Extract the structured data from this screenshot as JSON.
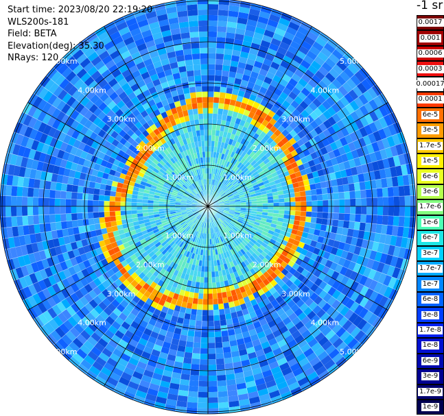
{
  "info": {
    "start_time": "Start time: 2023/08/20 22:19:20",
    "instrument": "WLS200s-181",
    "field": "Field: BETA",
    "elevation": "Elevation(deg): 35.30",
    "nrays": "NRays: 120"
  },
  "colorbar": {
    "title": "-1 sr",
    "labels": [
      "0.0017",
      "0.001",
      "0.0006",
      "0.0003",
      "0.00017",
      "0.0001",
      "6e-5",
      "3e-5",
      "1.7e-5",
      "1e-5",
      "6e-6",
      "3e-6",
      "1.7e-6",
      "1e-6",
      "6e-7",
      "3e-7",
      "1.7e-7",
      "1e-7",
      "6e-8",
      "3e-8",
      "1.7e-8",
      "1e-8",
      "6e-9",
      "3e-9",
      "1.7e-9",
      "1e-9"
    ],
    "colors": [
      "#7a0000",
      "#a00000",
      "#cc0000",
      "#ee1010",
      "#ffffff",
      "#ff3b00",
      "#ff7000",
      "#ff9c00",
      "#ffc800",
      "#fff000",
      "#e8ff20",
      "#b4ff4c",
      "#82ff7e",
      "#4cffb4",
      "#1ee6e6",
      "#00d0ff",
      "#00aaff",
      "#0086ff",
      "#0062ff",
      "#003eff",
      "#0020f0",
      "#0010d0",
      "#0008b0",
      "#000090",
      "#000070",
      "#000050"
    ]
  },
  "ring_labels": [
    "1.00km",
    "2.00km",
    "3.00km",
    "4.00km",
    "5.00km"
  ],
  "chart_data": {
    "type": "ppi",
    "field": "BETA",
    "elevation_deg": 35.3,
    "n_rays": 120,
    "rings_km": [
      1,
      2,
      3,
      4,
      5
    ],
    "max_range_km": 6.0,
    "units": "-1 sr"
  }
}
